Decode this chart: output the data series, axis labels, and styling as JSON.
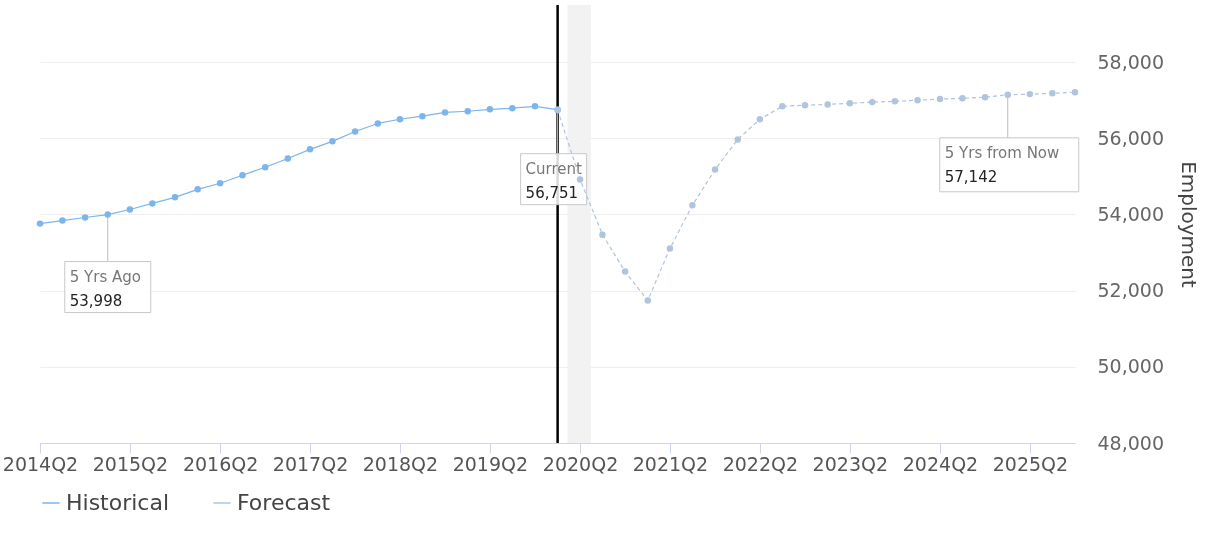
{
  "chart_data": {
    "type": "line",
    "ylabel": "Employment",
    "xlim": [
      "2014-04",
      "2025-10"
    ],
    "xticks": [
      {
        "value": "2014-04",
        "label": "2014Q2"
      },
      {
        "value": "2015-04",
        "label": "2015Q2"
      },
      {
        "value": "2016-04",
        "label": "2016Q2"
      },
      {
        "value": "2017-04",
        "label": "2017Q2"
      },
      {
        "value": "2018-04",
        "label": "2018Q2"
      },
      {
        "value": "2019-04",
        "label": "2019Q2"
      },
      {
        "value": "2020-04",
        "label": "2020Q2"
      },
      {
        "value": "2021-04",
        "label": "2021Q2"
      },
      {
        "value": "2022-04",
        "label": "2022Q2"
      },
      {
        "value": "2023-04",
        "label": "2023Q2"
      },
      {
        "value": "2024-04",
        "label": "2024Q2"
      },
      {
        "value": "2025-04",
        "label": "2025Q2"
      }
    ],
    "ylim": [
      48000,
      59500
    ],
    "yticks": [
      {
        "value": 48000,
        "label": "48,000"
      },
      {
        "value": 50000,
        "label": "50,000"
      },
      {
        "value": 52000,
        "label": "52,000"
      },
      {
        "value": 54000,
        "label": "54,000"
      },
      {
        "value": 56000,
        "label": "56,000"
      },
      {
        "value": 58000,
        "label": "58,000"
      }
    ],
    "grid": "y",
    "legend": "bottom",
    "marker": "circle",
    "series": [
      {
        "name": "Historical",
        "color": "#7cb5ec",
        "line_style": "solid",
        "x": [
          "2014-04",
          "2014-07",
          "2014-10",
          "2015-01",
          "2015-04",
          "2015-07",
          "2015-10",
          "2016-01",
          "2016-04",
          "2016-07",
          "2016-10",
          "2017-01",
          "2017-04",
          "2017-07",
          "2017-10",
          "2018-01",
          "2018-04",
          "2018-07",
          "2018-10",
          "2019-01",
          "2019-04",
          "2019-07",
          "2019-10",
          "2020-01"
        ],
        "values": [
          53760,
          53840,
          53920,
          53998,
          54130,
          54290,
          54450,
          54660,
          54820,
          55030,
          55240,
          55470,
          55710,
          55920,
          56180,
          56390,
          56500,
          56580,
          56680,
          56710,
          56760,
          56790,
          56840,
          56751
        ]
      },
      {
        "name": "Forecast",
        "color": "#b0c4de",
        "line_style": "dashed",
        "x": [
          "2020-01",
          "2020-04",
          "2020-07",
          "2020-10",
          "2021-01",
          "2021-04",
          "2021-07",
          "2021-10",
          "2022-01",
          "2022-04",
          "2022-07",
          "2022-10",
          "2023-01",
          "2023-04",
          "2023-07",
          "2023-10",
          "2024-01",
          "2024-04",
          "2024-07",
          "2024-10",
          "2025-01",
          "2025-04",
          "2025-07",
          "2025-10"
        ],
        "values": [
          56751,
          54920,
          53470,
          52500,
          51740,
          53110,
          54240,
          55180,
          55970,
          56500,
          56840,
          56870,
          56890,
          56920,
          56950,
          56970,
          57000,
          57030,
          57050,
          57080,
          57142,
          57160,
          57180,
          57210
        ]
      }
    ],
    "ref_lines": [
      {
        "axis": "x",
        "value": "2020-01",
        "color": "#000000",
        "line_style": "solid"
      }
    ],
    "bands": [
      {
        "axis": "x",
        "from": "2020-02-10",
        "to": "2020-05-15",
        "color": "#f2f2f2"
      }
    ],
    "annotations": [
      {
        "text": "5 Yrs Ago\n53,998",
        "x": "2015-01",
        "y": 53998
      },
      {
        "text": "Current\n56,751",
        "x": "2020-01",
        "y": 56751
      },
      {
        "text": "5 Yrs from Now\n57,142",
        "x": "2025-01",
        "y": 57142
      }
    ]
  }
}
